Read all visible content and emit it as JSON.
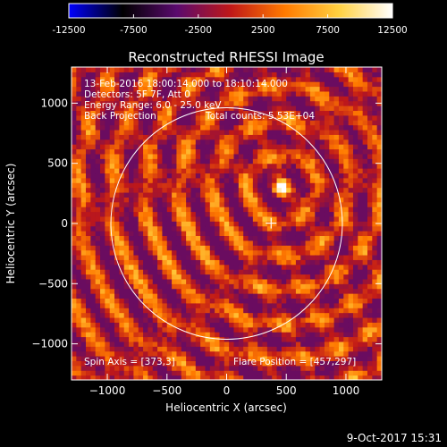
{
  "colorbar": {
    "tick_labels": [
      "-12500",
      "-7500",
      "-2500",
      "2500",
      "7500",
      "12500"
    ],
    "min": -12500,
    "max": 12500,
    "colors": [
      "#0000ff",
      "#000000",
      "#5a0a6e",
      "#c01818",
      "#ff7a00",
      "#ffd040",
      "#ffffff"
    ]
  },
  "chart_data": {
    "type": "heatmap",
    "title": "Reconstructed RHESSI Image",
    "xlabel": "Heliocentric X (arcsec)",
    "ylabel": "Heliocentric Y (arcsec)",
    "xlim": [
      -1300,
      1300
    ],
    "ylim": [
      -1300,
      1300
    ],
    "x_ticks": [
      -1000,
      -500,
      0,
      500,
      1000
    ],
    "y_ticks": [
      -1000,
      -500,
      0,
      500,
      1000
    ],
    "x_tick_labels": [
      "−1000",
      "−500",
      "0",
      "500",
      "1000"
    ],
    "y_tick_labels": [
      "−1000",
      "−500",
      "0",
      "500",
      "1000"
    ],
    "solar_limb_radius": 970,
    "spin_axis": [
      373,
      3
    ],
    "flare_position": [
      457,
      297
    ],
    "peak_value": 12500
  },
  "annotations": {
    "time_range": "13-Feb-2016 18:00:14.000 to 18:10:14.000",
    "detectors": "Detectors: 5F 7F, Att 0",
    "energy_range": "Energy Range: 6.0 - 25.0 keV",
    "method": "Back Projection",
    "total_counts": "Total counts: 5.53E+04",
    "spin_axis_label": "Spin Axis = [373,3]",
    "flare_position_label": "Flare Position = [457,297]"
  },
  "footer": {
    "timestamp": "9-Oct-2017 15:31"
  }
}
